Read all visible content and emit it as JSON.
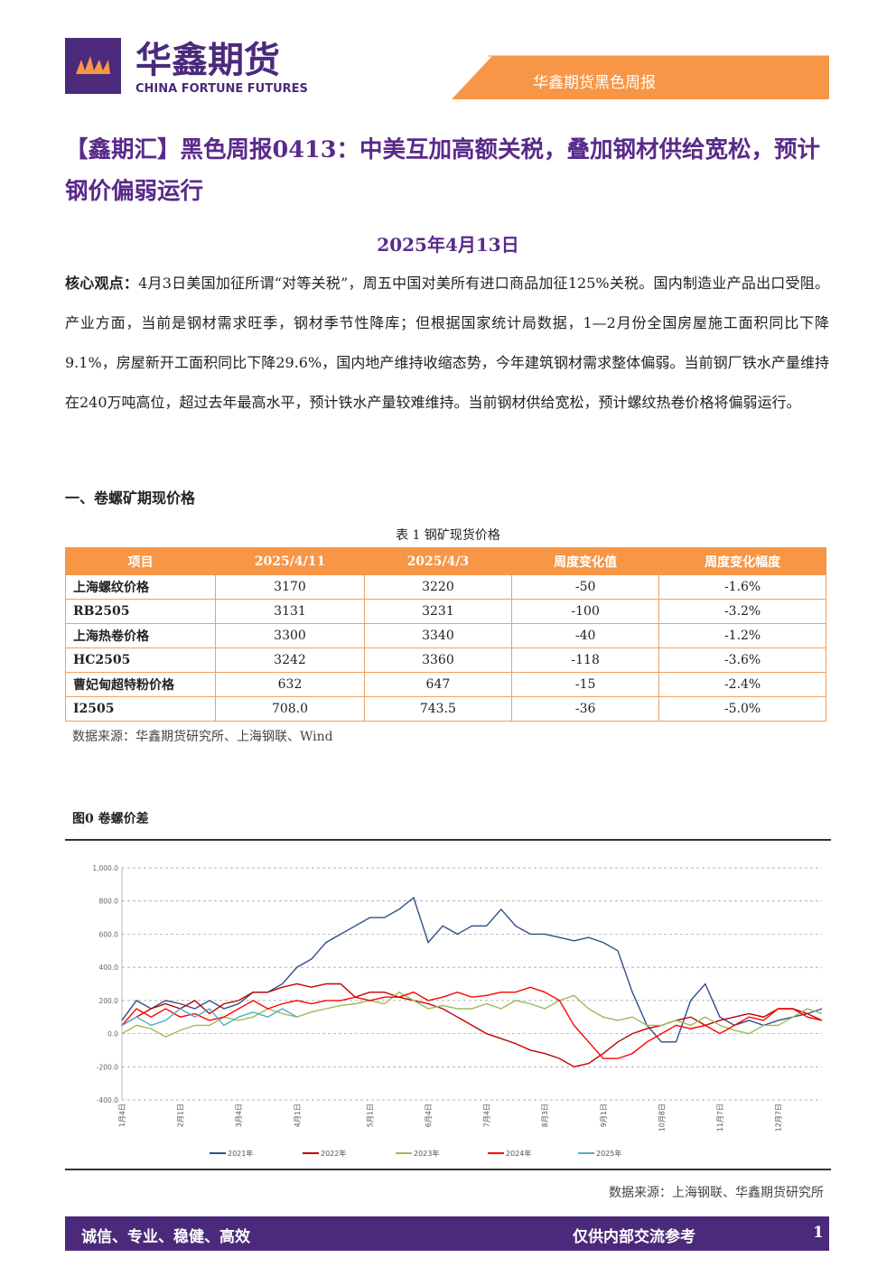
{
  "header": {
    "logo_cn": "华鑫期货",
    "logo_en": "CHINA FORTUNE FUTURES",
    "banner": "华鑫期货黑色周报"
  },
  "title": "【鑫期汇】黑色周报0413：中美互加高额关税，叠加钢材供给宽松，预计钢价偏弱运行",
  "date": "2025年4月13日",
  "summary": {
    "label": "核心观点：",
    "text": "4月3日美国加征所谓“对等关税”，周五中国对美所有进口商品加征125%关税。国内制造业产品出口受阻。产业方面，当前是钢材需求旺季，钢材季节性降库；但根据国家统计局数据，1—2月份全国房屋施工面积同比下降9.1%，房屋新开工面积同比下降29.6%，国内地产维持收缩态势，今年建筑钢材需求整体偏弱。当前钢厂铁水产量维持在240万吨高位，超过去年最高水平，预计铁水产量较难维持。当前钢材供给宽松，预计螺纹热卷价格将偏弱运行。"
  },
  "section": "一、卷螺矿期现价格",
  "table": {
    "caption": "表 1 钢矿现货价格",
    "header": [
      "项目",
      "2025/4/11",
      "2025/4/3",
      "周度变化值",
      "周度变化幅度"
    ],
    "rows": [
      [
        "上海螺纹价格",
        "3170",
        "3220",
        "-50",
        "-1.6%"
      ],
      [
        "RB2505",
        "3131",
        "3231",
        "-100",
        "-3.2%"
      ],
      [
        "上海热卷价格",
        "3300",
        "3340",
        "-40",
        "-1.2%"
      ],
      [
        "HC2505",
        "3242",
        "3360",
        "-118",
        "-3.6%"
      ],
      [
        "曹妃甸超特粉价格",
        "632",
        "647",
        "-15",
        "-2.4%"
      ],
      [
        "I2505",
        "708.0",
        "743.5",
        "-36",
        "-5.0%"
      ]
    ],
    "source": "数据来源：华鑫期货研究所、上海钢联、Wind"
  },
  "chart_data": {
    "type": "line",
    "title": "图0 卷螺价差",
    "source": "数据来源：上海钢联、华鑫期货研究所",
    "categories": [
      "1月4日",
      null,
      null,
      null,
      "2月1日",
      null,
      null,
      null,
      "3月4日",
      null,
      null,
      null,
      "4月1日",
      null,
      null,
      null,
      null,
      "5月1日",
      null,
      null,
      null,
      "6月4日",
      null,
      null,
      null,
      "7月4日",
      null,
      null,
      null,
      "8月3日",
      null,
      null,
      null,
      "9月1日",
      null,
      null,
      null,
      "10月8日",
      null,
      null,
      null,
      "11月7日",
      null,
      null,
      null,
      "12月7日",
      null,
      null,
      null
    ],
    "ylim": [
      -400,
      1000
    ],
    "yticks": [
      {
        "value": -400,
        "label": "-400.0"
      },
      {
        "value": -200,
        "label": "-200.0"
      },
      {
        "value": 0,
        "label": "0.0"
      },
      {
        "value": 200,
        "label": "200.0"
      },
      {
        "value": 400,
        "label": "400.0"
      },
      {
        "value": 600,
        "label": "600.0"
      },
      {
        "value": 800,
        "label": "800.0"
      },
      {
        "value": 1000,
        "label": "1,000.0"
      }
    ],
    "grid": true,
    "series": [
      {
        "name": "2021年",
        "color": "#2f4f86",
        "values": [
          80,
          200,
          150,
          200,
          180,
          150,
          200,
          150,
          180,
          250,
          250,
          300,
          400,
          450,
          550,
          600,
          650,
          700,
          700,
          750,
          820,
          550,
          650,
          600,
          650,
          650,
          750,
          650,
          600,
          600,
          580,
          560,
          580,
          550,
          500,
          250,
          50,
          -50,
          -50,
          200,
          300,
          100,
          50,
          80,
          50,
          80,
          100,
          120,
          150
        ]
      },
      {
        "name": "2022年",
        "color": "#c00000",
        "values": [
          50,
          100,
          150,
          180,
          150,
          200,
          120,
          180,
          200,
          250,
          250,
          280,
          300,
          280,
          300,
          300,
          220,
          250,
          250,
          220,
          200,
          180,
          150,
          100,
          50,
          0,
          -30,
          -60,
          -100,
          -120,
          -150,
          -200,
          -180,
          -120,
          -50,
          0,
          30,
          50,
          80,
          100,
          50,
          80,
          100,
          120,
          100,
          150,
          150,
          120,
          80
        ]
      },
      {
        "name": "2023年",
        "color": "#9bbb59",
        "values": [
          0,
          50,
          30,
          -20,
          20,
          50,
          50,
          100,
          80,
          100,
          150,
          120,
          100,
          130,
          150,
          170,
          180,
          200,
          180,
          250,
          200,
          150,
          170,
          150,
          150,
          180,
          150,
          200,
          180,
          150,
          200,
          230,
          150,
          100,
          80,
          100,
          50,
          50,
          80,
          50,
          100,
          50,
          20,
          0,
          50,
          50,
          100,
          150,
          120
        ]
      },
      {
        "name": "2024年",
        "color": "#ff0000",
        "values": [
          50,
          150,
          100,
          150,
          100,
          120,
          80,
          100,
          150,
          200,
          150,
          180,
          200,
          180,
          200,
          200,
          220,
          200,
          220,
          220,
          250,
          200,
          220,
          250,
          220,
          230,
          250,
          250,
          280,
          250,
          200,
          50,
          -50,
          -150,
          -150,
          -120,
          -50,
          0,
          50,
          30,
          50,
          0,
          50,
          100,
          80,
          150,
          150,
          100,
          80
        ]
      },
      {
        "name": "2025年",
        "color": "#4bacc6",
        "values": [
          50,
          100,
          50,
          80,
          150,
          100,
          150,
          50,
          100,
          130,
          100,
          150,
          100,
          null,
          null,
          null,
          null,
          null,
          null,
          null,
          null,
          null,
          null,
          null,
          null,
          null,
          null,
          null,
          null,
          null,
          null,
          null,
          null,
          null,
          null,
          null,
          null,
          null,
          null,
          null,
          null,
          null,
          null,
          null,
          null,
          null,
          null,
          null,
          null
        ]
      }
    ]
  },
  "footer": {
    "motto": "诚信、专业、稳健、高效",
    "note": "仅供内部交流参考",
    "page": "1"
  }
}
